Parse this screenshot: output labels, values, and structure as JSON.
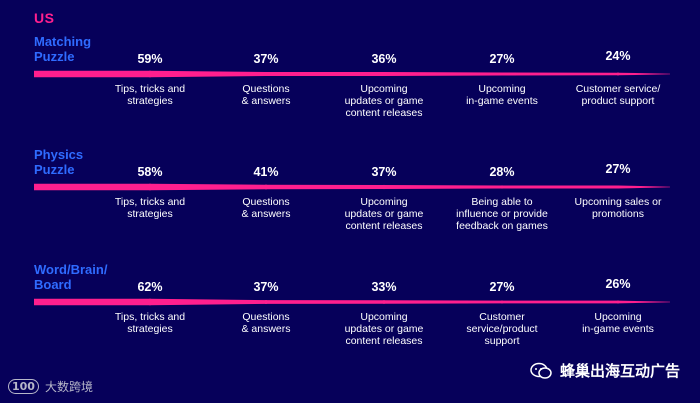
{
  "region": "US",
  "chart_data": [
    {
      "type": "bar",
      "genre": "Matching\nPuzzle",
      "categories": [
        "Tips, tricks and\nstrategies",
        "Questions\n& answers",
        "Upcoming\nupdates or game\ncontent releases",
        "Upcoming\nin-game events",
        "Customer service/\nproduct support"
      ],
      "values": [
        59,
        37,
        36,
        27,
        24
      ],
      "value_labels": [
        "59%",
        "37%",
        "36%",
        "27%",
        "24%"
      ]
    },
    {
      "type": "bar",
      "genre": "Physics\nPuzzle",
      "categories": [
        "Tips, tricks and\nstrategies",
        "Questions\n& answers",
        "Upcoming\nupdates or game\ncontent releases",
        "Being able to\ninfluence or provide\nfeedback on games",
        "Upcoming sales or\npromotions"
      ],
      "values": [
        58,
        41,
        37,
        28,
        27
      ],
      "value_labels": [
        "58%",
        "41%",
        "37%",
        "28%",
        "27%"
      ]
    },
    {
      "type": "bar",
      "genre": "Word/Brain/\nBoard",
      "categories": [
        "Tips, tricks and\nstrategies",
        "Questions\n& answers",
        "Upcoming\nupdates or game\ncontent releases",
        "Customer\nservice/product\nsupport",
        "Upcoming\nin-game events"
      ],
      "values": [
        62,
        37,
        33,
        27,
        26
      ],
      "value_labels": [
        "62%",
        "37%",
        "33%",
        "27%",
        "26%"
      ]
    }
  ],
  "colors": {
    "background": "#06005a",
    "accent": "#ff1f8e",
    "genre": "#2f6bff",
    "text": "#ffffff"
  },
  "watermarks": {
    "left": "大数跨境",
    "left_logo": "100",
    "right": "蜂巢出海互动广告"
  }
}
